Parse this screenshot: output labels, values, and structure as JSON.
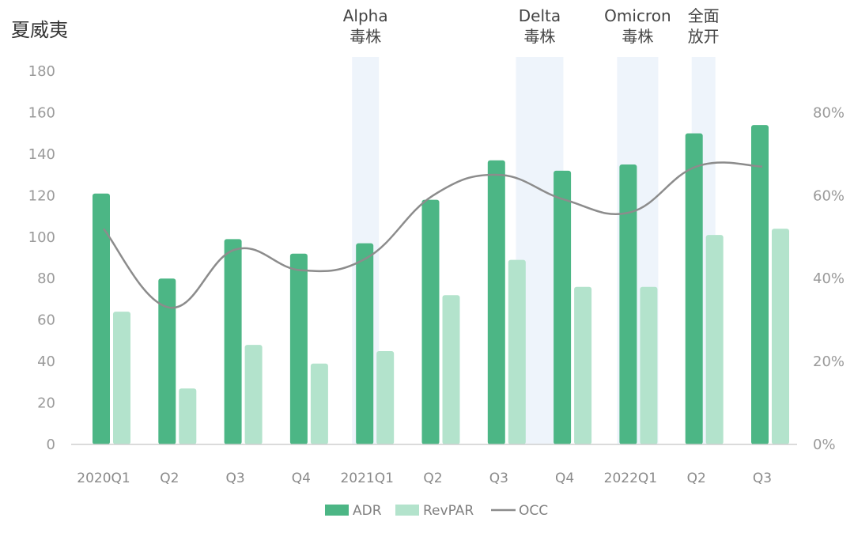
{
  "chart_data": {
    "type": "bar",
    "title": "夏威夷",
    "categories": [
      "2020Q1",
      "Q2",
      "Q3",
      "Q4",
      "2021Q1",
      "Q2",
      "Q3",
      "Q4",
      "2022Q1",
      "Q2",
      "Q3"
    ],
    "series": [
      {
        "name": "ADR",
        "type": "bar",
        "axis": "left",
        "color": "#4cb685",
        "values": [
          121,
          80,
          99,
          92,
          97,
          118,
          137,
          132,
          135,
          150,
          154
        ]
      },
      {
        "name": "RevPAR",
        "type": "bar",
        "axis": "left",
        "color": "#b3e3cc",
        "values": [
          64,
          27,
          48,
          39,
          45,
          72,
          89,
          76,
          76,
          101,
          104
        ]
      },
      {
        "name": "OCC",
        "type": "line",
        "axis": "right",
        "color": "#8c8c8c",
        "values": [
          52,
          33,
          47,
          42,
          45,
          60,
          65,
          59,
          56,
          67,
          67
        ]
      }
    ],
    "y_left": {
      "min": 0,
      "max": 180,
      "step": 20,
      "ticks": [
        "0",
        "20",
        "40",
        "60",
        "80",
        "100",
        "120",
        "140",
        "160",
        "180"
      ]
    },
    "y_right": {
      "min": 0,
      "max": 90,
      "ticks": [
        "0%",
        "20%",
        "40%",
        "60%",
        "80%"
      ],
      "tick_values": [
        0,
        20,
        40,
        60,
        80
      ]
    },
    "annotations": [
      {
        "lines": [
          "Alpha",
          "毒株"
        ],
        "from": 4,
        "to": 4
      },
      {
        "lines": [
          "Delta",
          "毒株"
        ],
        "from": 6,
        "to": 7
      },
      {
        "lines": [
          "Omicron",
          "毒株"
        ],
        "from": 8,
        "to": 8
      },
      {
        "lines": [
          "全面",
          "放开"
        ],
        "from": 9,
        "to": 9
      }
    ],
    "shade_color": "#eef4fb",
    "grid": false,
    "legend_position": "bottom"
  }
}
